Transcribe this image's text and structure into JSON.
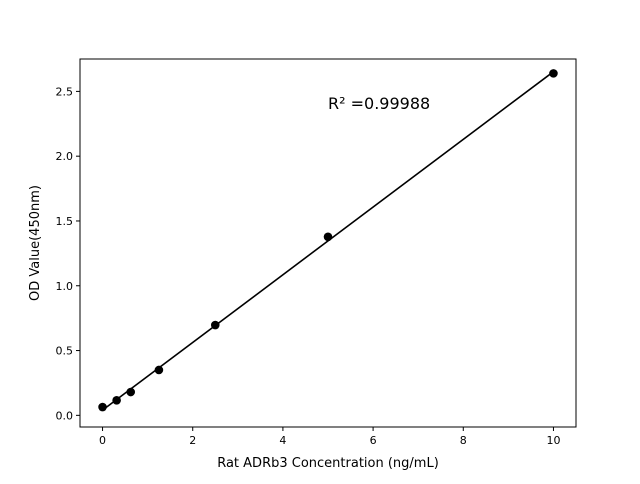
{
  "chart_data": {
    "type": "scatter",
    "title": "",
    "xlabel": "Rat ADRb3 Concentration (ng/mL)",
    "ylabel": "OD Value(450nm)",
    "xlim": [
      -0.5,
      10.5
    ],
    "ylim": [
      -0.09,
      2.75
    ],
    "xticks": [
      0,
      2,
      4,
      6,
      8,
      10
    ],
    "xtick_labels": [
      "0",
      "2",
      "4",
      "6",
      "8",
      "10"
    ],
    "yticks": [
      0.0,
      0.5,
      1.0,
      1.5,
      2.0,
      2.5
    ],
    "ytick_labels": [
      "0.0",
      "0.5",
      "1.0",
      "1.5",
      "2.0",
      "2.5"
    ],
    "grid": false,
    "annotation": "R² =0.99988",
    "fit": "linear",
    "series": [
      {
        "x": [
          0,
          0.3125,
          0.625,
          1.25,
          2.5,
          5,
          10
        ],
        "y": [
          0.064,
          0.116,
          0.18,
          0.35,
          0.697,
          1.378,
          2.639
        ],
        "color": "#000000"
      }
    ]
  }
}
